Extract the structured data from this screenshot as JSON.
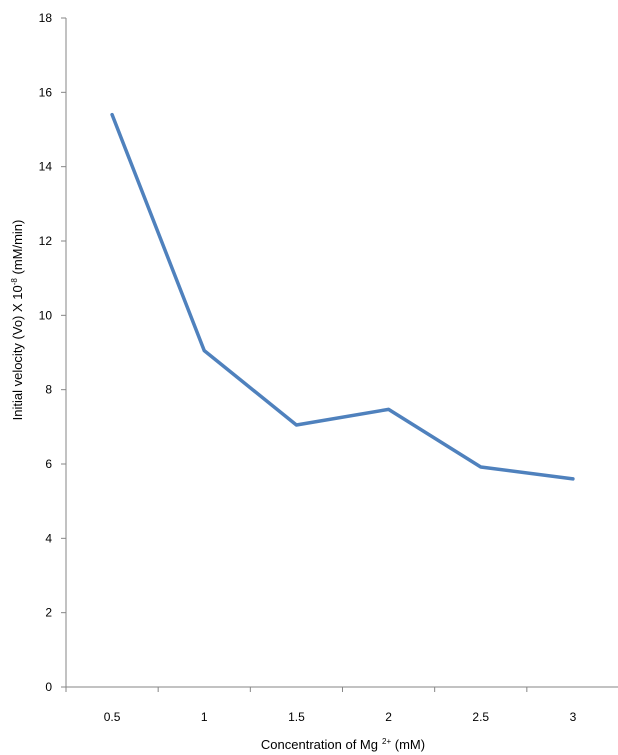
{
  "chart_data": {
    "type": "line",
    "categories": [
      "0.5",
      "1",
      "1.5",
      "2",
      "2.5",
      "3"
    ],
    "series": [
      {
        "values": [
          15.4,
          9.05,
          7.05,
          7.47,
          5.92,
          5.6
        ]
      }
    ],
    "ylim": [
      0,
      18
    ],
    "y_ticks": [
      "0",
      "2",
      "4",
      "6",
      "8",
      "10",
      "12",
      "14",
      "16",
      "18"
    ],
    "ylabel": "Initial velocity (Vo) X 10",
    "ylabel_sup": "-8",
    "ylabel_unit": " (mM/min)",
    "xlabel": "Concentration of  Mg",
    "xlabel_sup": "2+",
    "xlabel_unit": " (mM)",
    "line_color": "#4f81bd",
    "grid": false,
    "legend": "none"
  }
}
